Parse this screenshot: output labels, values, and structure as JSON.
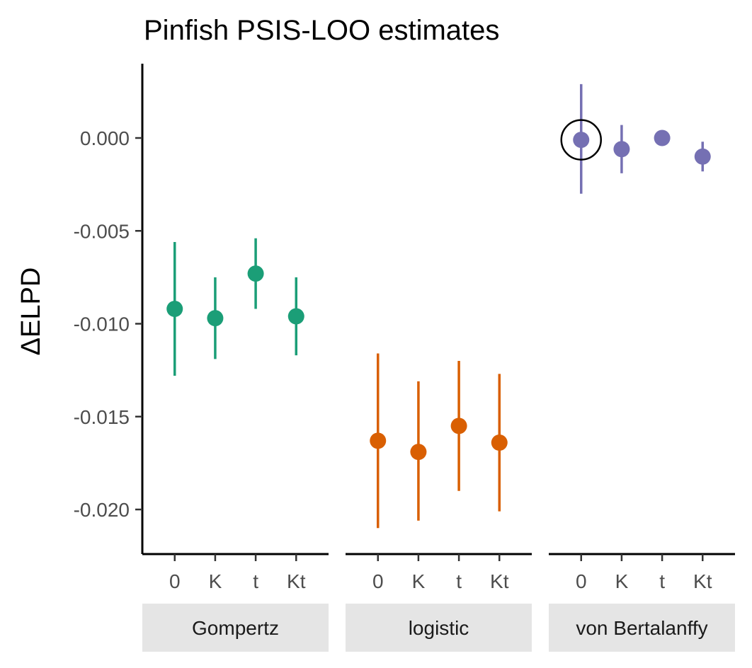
{
  "chart_data": {
    "type": "scatter",
    "title": "Pinfish PSIS-LOO estimates",
    "xlabel": "",
    "ylabel": "ΔELPD",
    "ylim": [
      -0.0224,
      0.004
    ],
    "yticks": [
      {
        "value": 0.0,
        "label": "0.000"
      },
      {
        "value": -0.005,
        "label": "-0.005"
      },
      {
        "value": -0.01,
        "label": "-0.010"
      },
      {
        "value": -0.015,
        "label": "-0.015"
      },
      {
        "value": -0.02,
        "label": "-0.020"
      }
    ],
    "categories": [
      "0",
      "K",
      "t",
      "Kt"
    ],
    "grid": false,
    "legend": "none",
    "facets": [
      {
        "label": "Gompertz",
        "color": "#1B9E77",
        "points": [
          {
            "x": "0",
            "y": -0.0092,
            "lower": -0.0128,
            "upper": -0.0056
          },
          {
            "x": "K",
            "y": -0.0097,
            "lower": -0.0119,
            "upper": -0.0075
          },
          {
            "x": "t",
            "y": -0.0073,
            "lower": -0.0092,
            "upper": -0.0054
          },
          {
            "x": "Kt",
            "y": -0.0096,
            "lower": -0.0117,
            "upper": -0.0075
          }
        ]
      },
      {
        "label": "logistic",
        "color": "#D95F02",
        "points": [
          {
            "x": "0",
            "y": -0.0163,
            "lower": -0.021,
            "upper": -0.0116
          },
          {
            "x": "K",
            "y": -0.0169,
            "lower": -0.0206,
            "upper": -0.0131
          },
          {
            "x": "t",
            "y": -0.0155,
            "lower": -0.019,
            "upper": -0.012
          },
          {
            "x": "Kt",
            "y": -0.0164,
            "lower": -0.0201,
            "upper": -0.0127
          }
        ]
      },
      {
        "label": "von Bertalanffy",
        "color": "#7570B3",
        "points": [
          {
            "x": "0",
            "y": -0.0001,
            "lower": -0.003,
            "upper": 0.0029,
            "highlighted": true
          },
          {
            "x": "K",
            "y": -0.0006,
            "lower": -0.0019,
            "upper": 0.0007
          },
          {
            "x": "t",
            "y": 0.0,
            "lower": 0.0,
            "upper": 0.0
          },
          {
            "x": "Kt",
            "y": -0.001,
            "lower": -0.0018,
            "upper": -0.0002
          }
        ]
      }
    ]
  }
}
